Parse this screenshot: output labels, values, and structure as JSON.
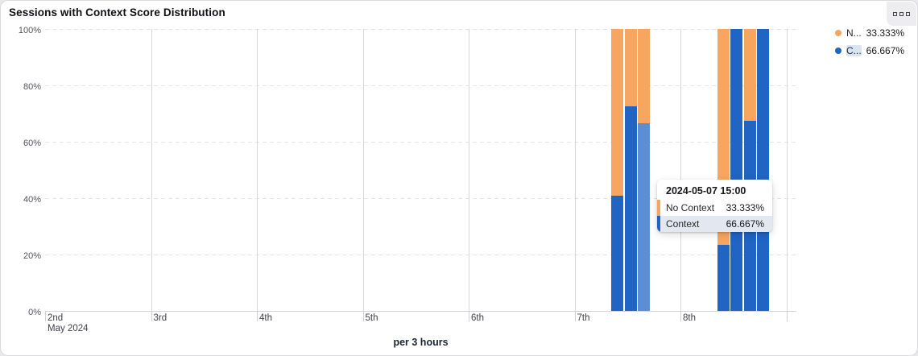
{
  "card": {
    "title": "Sessions with Context Score Distribution",
    "footer": "per 3 hours"
  },
  "legend": {
    "items": [
      {
        "label": "N...",
        "value": "33.333%",
        "series": "No Context",
        "color": "#f8a55f",
        "highlighted": false
      },
      {
        "label": "C...",
        "value": "66.667%",
        "series": "Context",
        "color": "#2064c4",
        "highlighted": true
      }
    ]
  },
  "tooltip": {
    "title": "2024-05-07 15:00",
    "rows": [
      {
        "label": "No Context",
        "value": "33.333%",
        "color": "#f8a55f",
        "highlighted": false
      },
      {
        "label": "Context",
        "value": "66.667%",
        "color": "#2064c4",
        "highlighted": true
      }
    ]
  },
  "chart_data": {
    "type": "bar",
    "stacked": true,
    "title": "Sessions with Context Score Distribution",
    "x_interval": "per 3 hours",
    "x_axis": {
      "tick_labels": [
        "2nd",
        "3rd",
        "4th",
        "5th",
        "6th",
        "7th",
        "8th"
      ],
      "sub_label": "May 2024",
      "extra_unlabeled_tick": true
    },
    "y_axis": {
      "tick_labels_top_down": [
        "100%",
        "80%",
        "60%",
        "40%",
        "20%",
        "0%"
      ],
      "range": [
        0,
        100
      ],
      "grid": "dashed"
    },
    "series": [
      {
        "name": "No Context",
        "color": "#f8a55f",
        "stack_position": "top"
      },
      {
        "name": "Context",
        "color": "#2064c4",
        "hover_color": "#5c8ed8",
        "stack_position": "bottom"
      }
    ],
    "bars": [
      {
        "time": "2024-05-07 09:00",
        "context": 41.0,
        "no_context": 59.0,
        "hovered": false
      },
      {
        "time": "2024-05-07 12:00",
        "context": 72.6,
        "no_context": 27.4,
        "hovered": false
      },
      {
        "time": "2024-05-07 15:00",
        "context": 66.667,
        "no_context": 33.333,
        "hovered": true
      },
      {
        "time": "2024-05-08 09:00",
        "context": 23.3,
        "no_context": 76.7,
        "hovered": false
      },
      {
        "time": "2024-05-08 12:00",
        "context": 100,
        "no_context": 0,
        "hovered": false
      },
      {
        "time": "2024-05-08 15:00",
        "context": 67.3,
        "no_context": 32.7,
        "hovered": false
      },
      {
        "time": "2024-05-08 18:00",
        "context": 100,
        "no_context": 0,
        "hovered": false
      }
    ]
  }
}
